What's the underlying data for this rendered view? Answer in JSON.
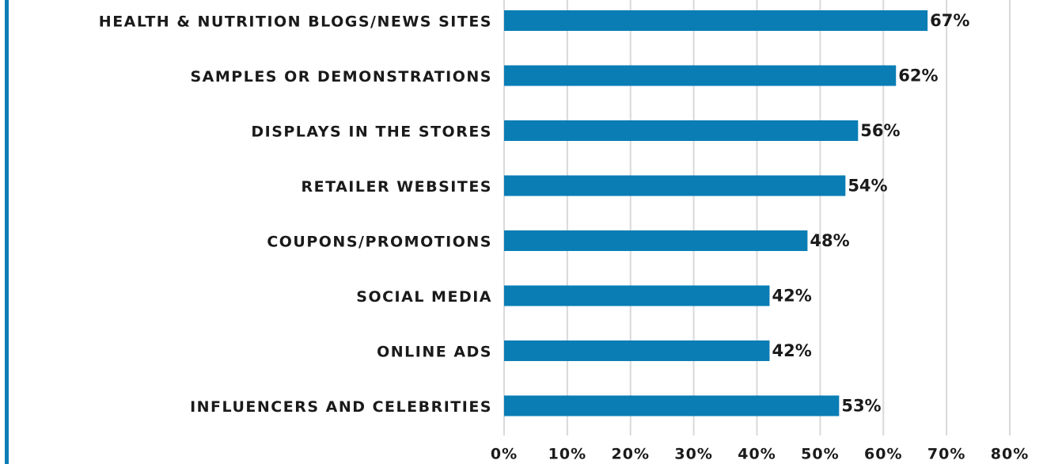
{
  "chart_data": {
    "type": "bar",
    "orientation": "horizontal",
    "categories": [
      "HEALTH & NUTRITION BLOGS/NEWS SITES",
      "SAMPLES OR DEMONSTRATIONS",
      "DISPLAYS IN THE STORES",
      "RETAILER WEBSITES",
      "COUPONS/PROMOTIONS",
      "SOCIAL MEDIA",
      "ONLINE ADS",
      "INFLUENCERS AND CELEBRITIES"
    ],
    "values": [
      67,
      62,
      56,
      54,
      48,
      42,
      42,
      53
    ],
    "value_labels": [
      "67%",
      "62%",
      "56%",
      "54%",
      "48%",
      "42%",
      "42%",
      "53%"
    ],
    "color": "#0a7db5",
    "xlim": [
      0,
      80
    ],
    "xticks": [
      {
        "value": 0,
        "label": "0%"
      },
      {
        "value": 10,
        "label": "10%"
      },
      {
        "value": 20,
        "label": "20%"
      },
      {
        "value": 30,
        "label": "30%"
      },
      {
        "value": 40,
        "label": "40%"
      },
      {
        "value": 50,
        "label": "50%"
      },
      {
        "value": 60,
        "label": "60%"
      },
      {
        "value": 70,
        "label": "70%"
      },
      {
        "value": 80,
        "label": "80%"
      }
    ],
    "grid": true
  }
}
